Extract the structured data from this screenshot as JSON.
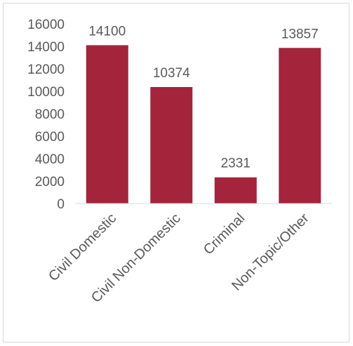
{
  "chart_data": {
    "type": "bar",
    "categories": [
      "Civil Domestic",
      "Civil Non-Domestic",
      "Criminal",
      "Non-Topic/Other"
    ],
    "values": [
      14100,
      10374,
      2331,
      13857
    ],
    "data_labels": [
      "14100",
      "10374",
      "2331",
      "13857"
    ],
    "ylim": [
      0,
      16000
    ],
    "yticks": [
      "0",
      "2000",
      "4000",
      "6000",
      "8000",
      "10000",
      "12000",
      "14000",
      "16000"
    ],
    "grid": false,
    "legend": "none",
    "bar_color": "#a3243b",
    "axis_color": "#d9d9d9"
  }
}
